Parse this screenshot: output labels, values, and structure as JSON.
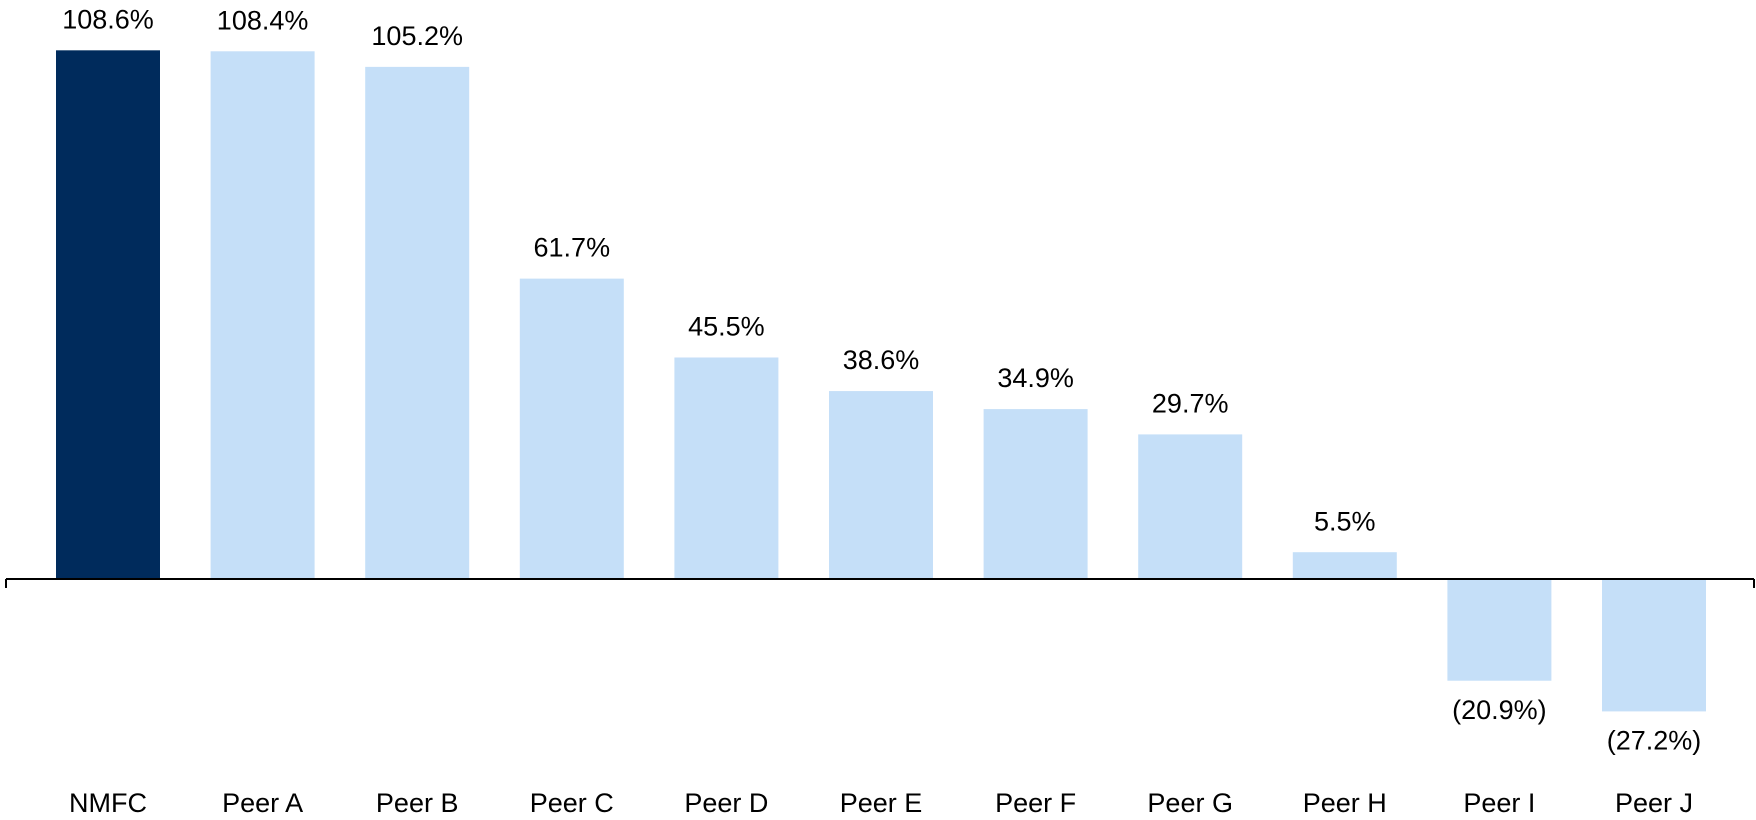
{
  "chart_data": {
    "type": "bar",
    "categories": [
      "NMFC",
      "Peer A",
      "Peer B",
      "Peer C",
      "Peer D",
      "Peer E",
      "Peer F",
      "Peer G",
      "Peer H",
      "Peer I",
      "Peer J"
    ],
    "values": [
      108.6,
      108.4,
      105.2,
      61.7,
      45.5,
      38.6,
      34.9,
      29.7,
      5.5,
      -20.9,
      -27.2
    ],
    "value_labels": [
      "108.6%",
      "108.4%",
      "105.2%",
      "61.7%",
      "45.5%",
      "38.6%",
      "34.9%",
      "29.7%",
      "5.5%",
      "(20.9%)",
      "(27.2%)"
    ],
    "colors": [
      "#002b5c",
      "#c5dff8",
      "#c5dff8",
      "#c5dff8",
      "#c5dff8",
      "#c5dff8",
      "#c5dff8",
      "#c5dff8",
      "#c5dff8",
      "#c5dff8",
      "#c5dff8"
    ],
    "ylim": [
      -40,
      110
    ]
  }
}
